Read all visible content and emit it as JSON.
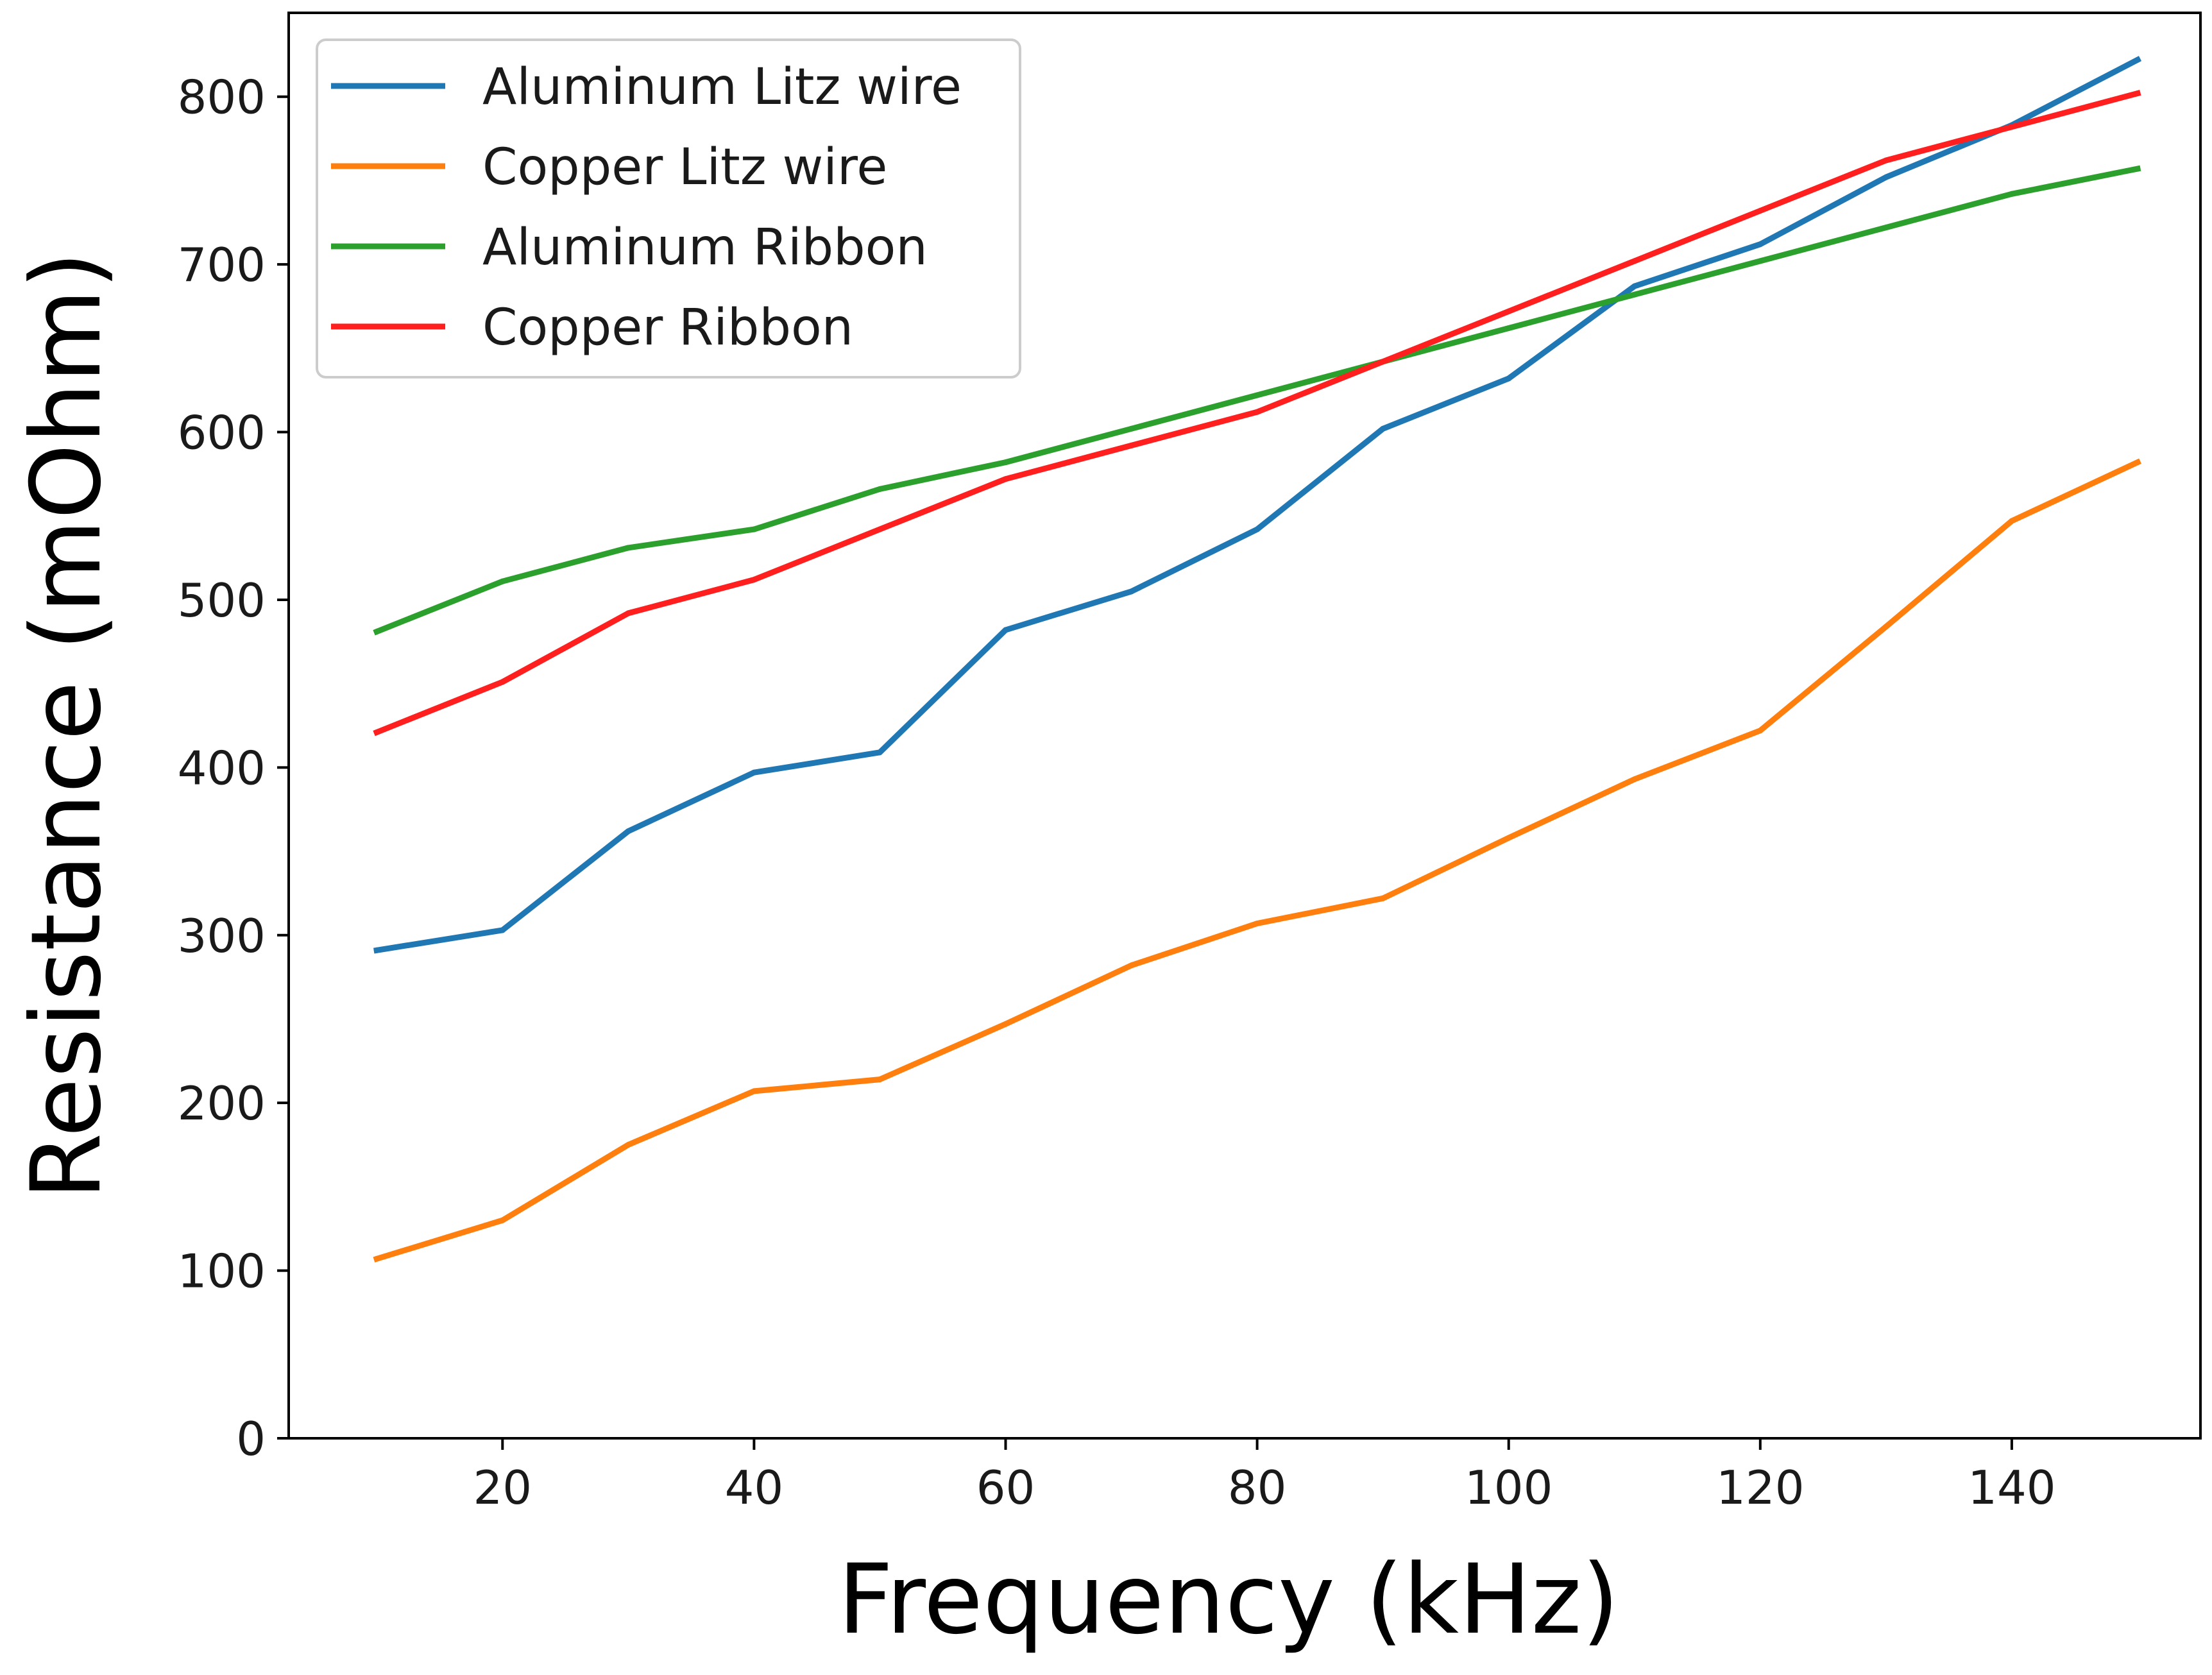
{
  "chart_data": {
    "type": "line",
    "title": "",
    "xlabel": "Frequency (kHz)",
    "ylabel": "Resistance (mOhm)",
    "xlim": [
      3,
      155
    ],
    "ylim": [
      0,
      850
    ],
    "xticks": [
      20,
      40,
      60,
      80,
      100,
      120,
      140
    ],
    "yticks": [
      0,
      100,
      200,
      300,
      400,
      500,
      600,
      700,
      800
    ],
    "grid": false,
    "legend_position": "top-left",
    "x": [
      10,
      20,
      30,
      40,
      50,
      60,
      70,
      80,
      90,
      100,
      110,
      120,
      130,
      140,
      150
    ],
    "series": [
      {
        "name": "Aluminum Litz wire",
        "color": "#1f77b4",
        "values": [
          291,
          303,
          362,
          397,
          409,
          482,
          505,
          542,
          602,
          632,
          687,
          712,
          752,
          783,
          822
        ]
      },
      {
        "name": "Copper Litz wire",
        "color": "#ff7f0e",
        "values": [
          107,
          130,
          175,
          207,
          214,
          247,
          282,
          307,
          322,
          358,
          393,
          422,
          484,
          547,
          582
        ]
      },
      {
        "name": "Aluminum Ribbon",
        "color": "#2ca02c",
        "values": [
          481,
          511,
          531,
          542,
          566,
          582,
          602,
          622,
          642,
          662,
          682,
          702,
          722,
          742,
          757
        ]
      },
      {
        "name": "Copper Ribbon",
        "color": "#ff1f1f",
        "values": [
          421,
          451,
          492,
          512,
          542,
          572,
          592,
          612,
          642,
          672,
          702,
          732,
          762,
          782,
          802
        ]
      }
    ]
  }
}
